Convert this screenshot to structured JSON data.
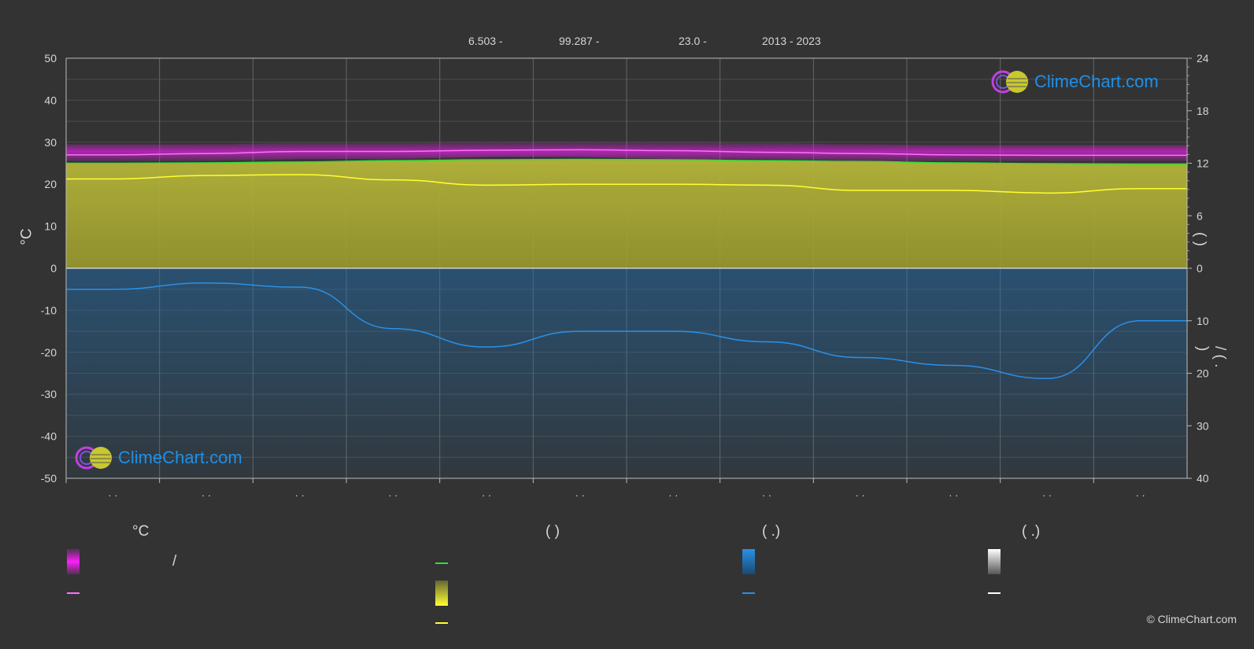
{
  "header": {
    "lat_text": "6.503 -",
    "lon_text": "99.287 -",
    "elev_text": "23.0 -",
    "period_text": "2013 - 2023"
  },
  "logo": {
    "text": "ClimeChart.com"
  },
  "copyright": "© ClimeChart.com",
  "axes": {
    "left_unit": "°C",
    "right_top_label": "(  )",
    "right_bottom_label": "/  (  .  )"
  },
  "legend": {
    "col1_title": "°C",
    "col1_range_sep": "/",
    "col2_title": "(          )",
    "col3_title": "(   .)",
    "col4_title": "(   .)"
  },
  "colors": {
    "background": "#333333",
    "grid": "#5a5a5a",
    "magenta": "#e020e0",
    "pink_line": "#ff70ff",
    "green_line": "#33dd33",
    "yellow_fill": "#a8a832",
    "yellow_line": "#ffff33",
    "blue_fill": "#1f6fb0",
    "blue_line": "#2a90e8",
    "white": "#ffffff",
    "logo_blue": "#1e90e8"
  },
  "chart_data": {
    "type": "area",
    "months": 12,
    "month_labels": [
      "· ·",
      "· ·",
      "· ·",
      "· ·",
      "· ·",
      "· ·",
      "· ·",
      "· ·",
      "· ·",
      "· ·",
      "· ·",
      "· ·"
    ],
    "left_axis": {
      "min": -50,
      "max": 50,
      "ticks": [
        50,
        40,
        30,
        20,
        10,
        0,
        -10,
        -20,
        -30,
        -40,
        -50
      ],
      "unit": "°C"
    },
    "right_axis_top": {
      "min": 0,
      "max": 24,
      "ticks": [
        24,
        18,
        12,
        6,
        0
      ]
    },
    "right_axis_bottom": {
      "min": 0,
      "max": 40,
      "ticks": [
        0,
        10,
        20,
        30,
        40
      ]
    },
    "temp_max_band": [
      29.5,
      29.5,
      29.8,
      29.8,
      30.0,
      30.0,
      30.0,
      29.8,
      29.5,
      29.3,
      29.3,
      29.3
    ],
    "temp_min_band": [
      25.5,
      25.5,
      26.0,
      26.0,
      26.5,
      26.5,
      26.0,
      26.0,
      25.5,
      25.5,
      25.5,
      25.5
    ],
    "temp_mean_line": [
      27.0,
      27.3,
      27.8,
      27.8,
      28.1,
      28.2,
      28.0,
      27.6,
      27.3,
      27.0,
      26.9,
      26.9
    ],
    "daylight_hours": [
      12.0,
      12.05,
      12.15,
      12.3,
      12.4,
      12.45,
      12.4,
      12.3,
      12.2,
      12.05,
      11.95,
      11.9
    ],
    "sunshine_hours": [
      10.2,
      10.6,
      10.7,
      10.1,
      9.5,
      9.6,
      9.6,
      9.5,
      8.9,
      8.9,
      8.6,
      9.1
    ],
    "precipitation_mm_right": [
      4.0,
      2.8,
      3.6,
      11.5,
      15.0,
      12.0,
      12.0,
      14.0,
      17.0,
      18.5,
      21.0,
      10.0
    ]
  }
}
